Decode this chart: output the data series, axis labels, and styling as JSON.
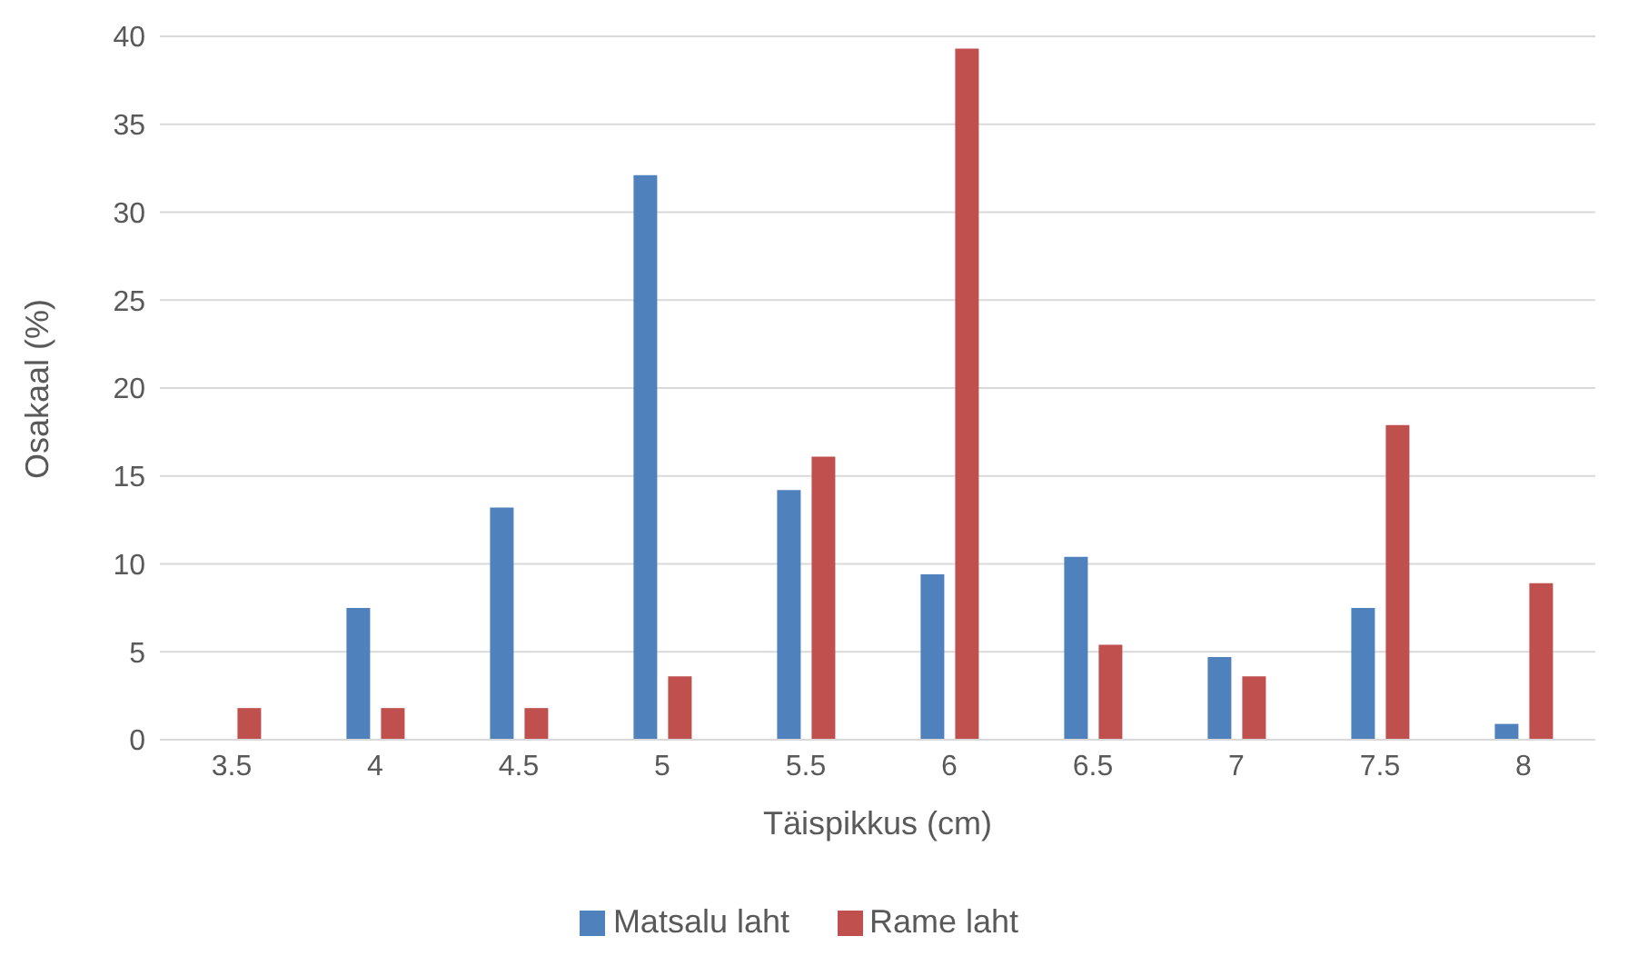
{
  "chart_data": {
    "type": "bar",
    "xlabel": "Täispikkus (cm)",
    "ylabel": "Osakaal (%)",
    "categories": [
      "3.5",
      "4",
      "4.5",
      "5",
      "5.5",
      "6",
      "6.5",
      "7",
      "7.5",
      "8"
    ],
    "series": [
      {
        "name": "Matsalu laht",
        "color": "#4f81bd",
        "values": [
          null,
          7.5,
          13.2,
          32.1,
          14.2,
          9.4,
          10.4,
          4.7,
          7.5,
          0.9
        ]
      },
      {
        "name": "Rame laht",
        "color": "#c0504d",
        "values": [
          1.8,
          1.8,
          1.8,
          3.6,
          16.1,
          39.3,
          5.4,
          3.6,
          17.9,
          8.9
        ]
      }
    ],
    "ylim": [
      0,
      40
    ],
    "yticks": [
      0,
      5,
      10,
      15,
      20,
      25,
      30,
      35,
      40
    ],
    "grid": "y",
    "legend": "bottom"
  }
}
